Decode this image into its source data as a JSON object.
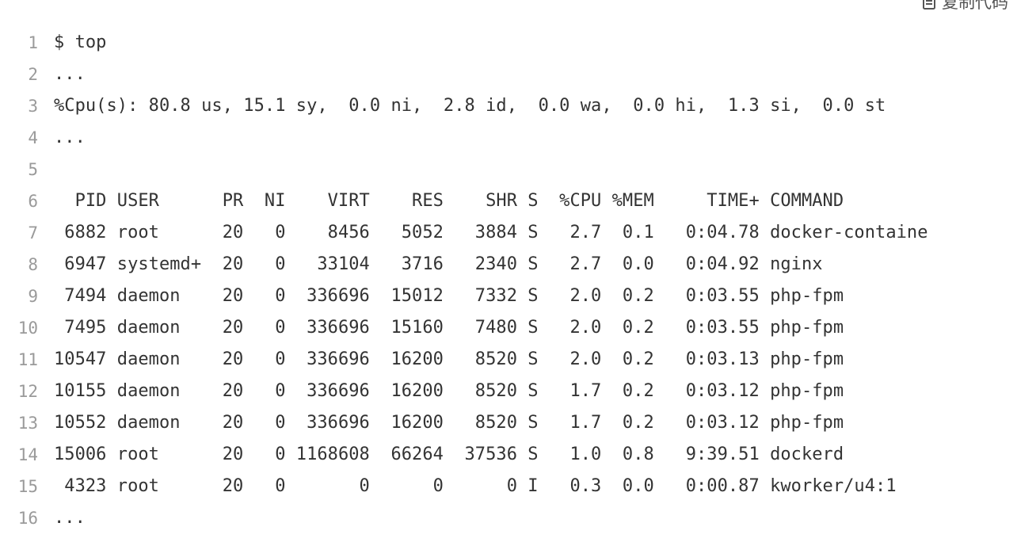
{
  "copy_button": {
    "label": "复制代码",
    "icon": "clipboard-icon"
  },
  "code": {
    "lines": [
      {
        "num": "1",
        "text": "$ top"
      },
      {
        "num": "2",
        "text": "..."
      },
      {
        "num": "3",
        "text": "%Cpu(s): 80.8 us, 15.1 sy,  0.0 ni,  2.8 id,  0.0 wa,  0.0 hi,  1.3 si,  0.0 st"
      },
      {
        "num": "4",
        "text": "..."
      },
      {
        "num": "5",
        "text": ""
      },
      {
        "num": "6",
        "text": "  PID USER      PR  NI    VIRT    RES    SHR S  %CPU %MEM     TIME+ COMMAND"
      },
      {
        "num": "7",
        "text": " 6882 root      20   0    8456   5052   3884 S   2.7  0.1   0:04.78 docker-containe"
      },
      {
        "num": "8",
        "text": " 6947 systemd+  20   0   33104   3716   2340 S   2.7  0.0   0:04.92 nginx"
      },
      {
        "num": "9",
        "text": " 7494 daemon    20   0  336696  15012   7332 S   2.0  0.2   0:03.55 php-fpm"
      },
      {
        "num": "10",
        "text": " 7495 daemon    20   0  336696  15160   7480 S   2.0  0.2   0:03.55 php-fpm"
      },
      {
        "num": "11",
        "text": "10547 daemon    20   0  336696  16200   8520 S   2.0  0.2   0:03.13 php-fpm"
      },
      {
        "num": "12",
        "text": "10155 daemon    20   0  336696  16200   8520 S   1.7  0.2   0:03.12 php-fpm"
      },
      {
        "num": "13",
        "text": "10552 daemon    20   0  336696  16200   8520 S   1.7  0.2   0:03.12 php-fpm"
      },
      {
        "num": "14",
        "text": "15006 root      20   0 1168608  66264  37536 S   1.0  0.8   9:39.51 dockerd"
      },
      {
        "num": "15",
        "text": " 4323 root      20   0       0      0      0 I   0.3  0.0   0:00.87 kworker/u4:1"
      },
      {
        "num": "16",
        "text": "..."
      }
    ]
  }
}
